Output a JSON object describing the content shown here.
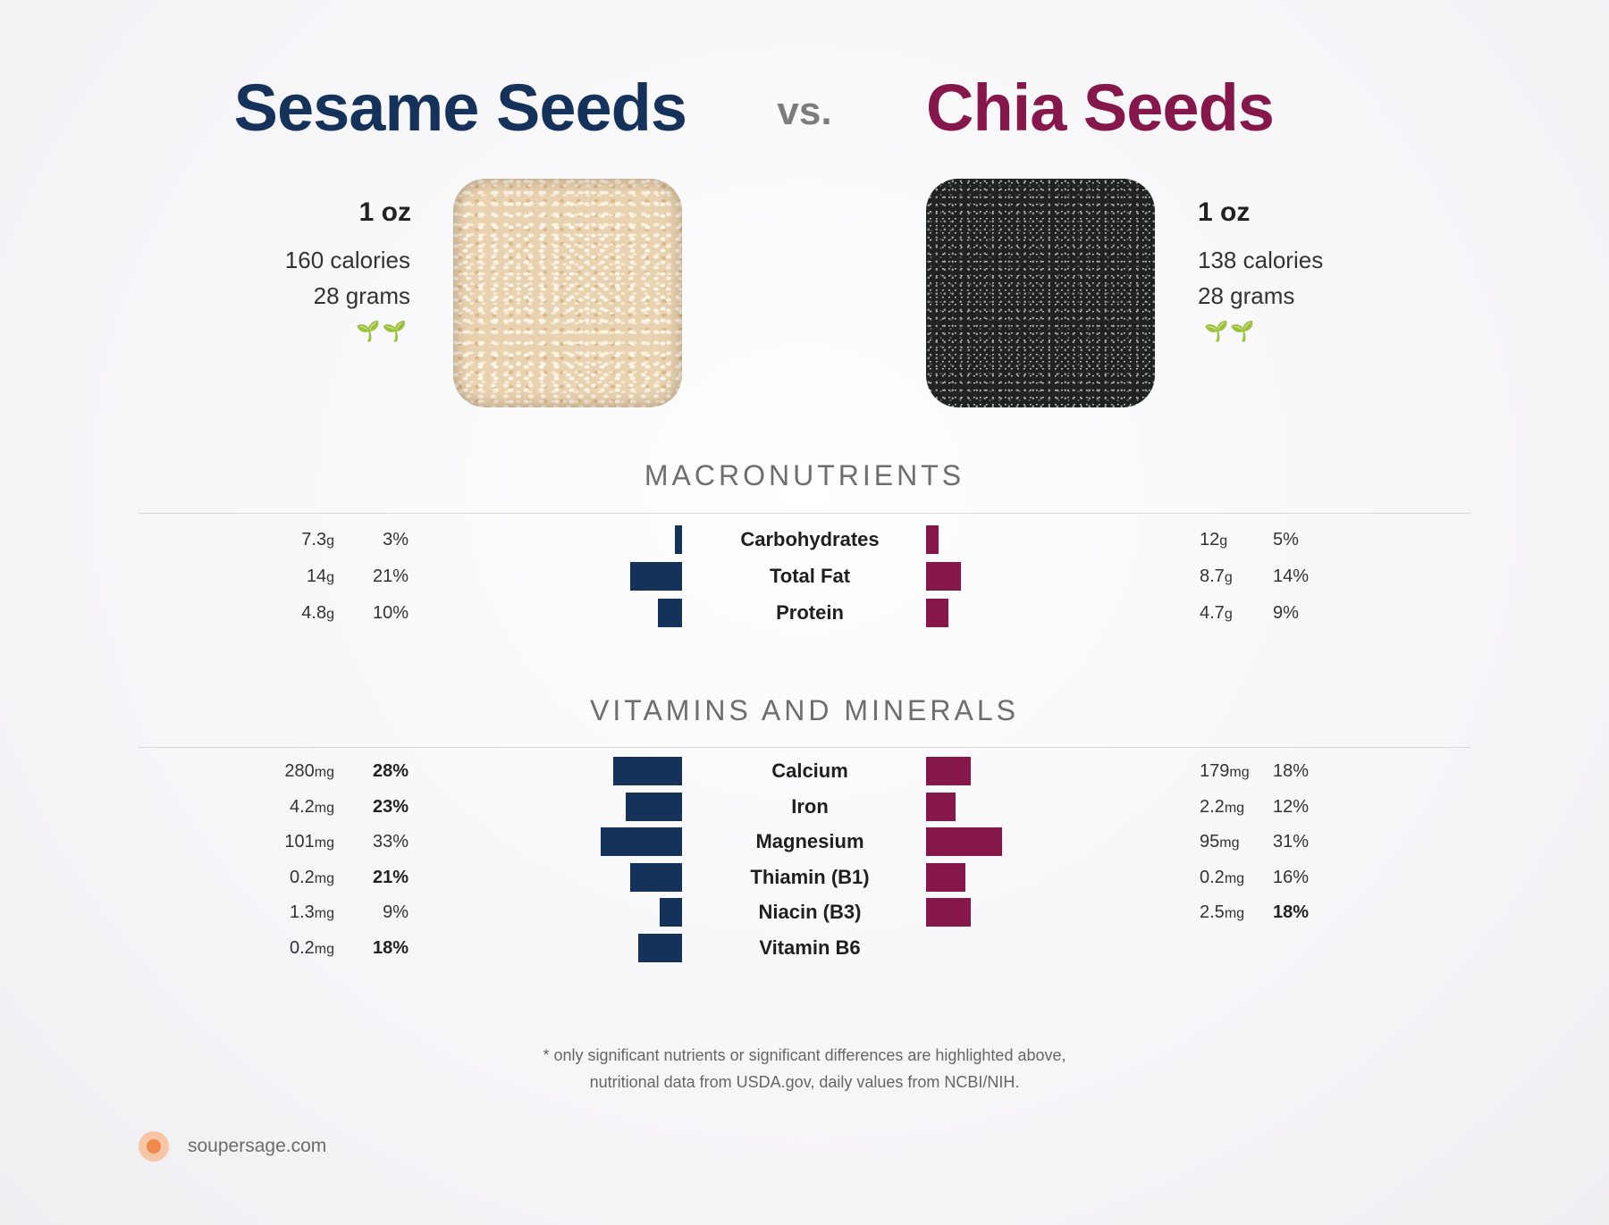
{
  "left_food": {
    "name": "Sesame Seeds",
    "color": "#15325a",
    "serving": "1 oz",
    "calories": "160 calories",
    "grams": "28 grams",
    "icon": "sprout-icon",
    "leaf_glyph": "🌱🌱"
  },
  "right_food": {
    "name": "Chia Seeds",
    "color": "#85174a",
    "serving": "1 oz",
    "calories": "138 calories",
    "grams": "28 grams",
    "icon": "sprout-icon",
    "leaf_glyph": "🌱🌱"
  },
  "vs_label": "vs.",
  "chart_data": [
    {
      "type": "bar",
      "title": "MACRONUTRIENTS",
      "categories": [
        "Carbohydrates",
        "Total Fat",
        "Protein"
      ],
      "series": [
        {
          "name": "Sesame Seeds",
          "amounts": [
            "7.3",
            "14",
            "4.8"
          ],
          "units": [
            "g",
            "g",
            "g"
          ],
          "values": [
            3,
            21,
            10
          ],
          "bold": [
            false,
            false,
            false
          ]
        },
        {
          "name": "Chia Seeds",
          "amounts": [
            "12",
            "8.7",
            "4.7"
          ],
          "units": [
            "g",
            "g",
            "g"
          ],
          "values": [
            5,
            14,
            9
          ],
          "bold": [
            false,
            false,
            false
          ]
        }
      ]
    },
    {
      "type": "bar",
      "title": "VITAMINS AND MINERALS",
      "categories": [
        "Calcium",
        "Iron",
        "Magnesium",
        "Thiamin (B1)",
        "Niacin (B3)",
        "Vitamin B6"
      ],
      "series": [
        {
          "name": "Sesame Seeds",
          "amounts": [
            "280",
            "4.2",
            "101",
            "0.2",
            "1.3",
            "0.2"
          ],
          "units": [
            "mg",
            "mg",
            "mg",
            "mg",
            "mg",
            "mg"
          ],
          "values": [
            28,
            23,
            33,
            21,
            9,
            18
          ],
          "bold": [
            true,
            true,
            false,
            true,
            false,
            true
          ]
        },
        {
          "name": "Chia Seeds",
          "amounts": [
            "179",
            "2.2",
            "95",
            "0.2",
            "2.5",
            null
          ],
          "units": [
            "mg",
            "mg",
            "mg",
            "mg",
            "mg",
            null
          ],
          "values": [
            18,
            12,
            31,
            16,
            18,
            null
          ],
          "bold": [
            false,
            false,
            false,
            false,
            true,
            false
          ]
        }
      ]
    }
  ],
  "footnote_line1": "* only significant nutrients or significant differences are highlighted above,",
  "footnote_line2": "nutritional data from USDA.gov, daily values from NCBI/NIH.",
  "brand": "soupersage.com"
}
